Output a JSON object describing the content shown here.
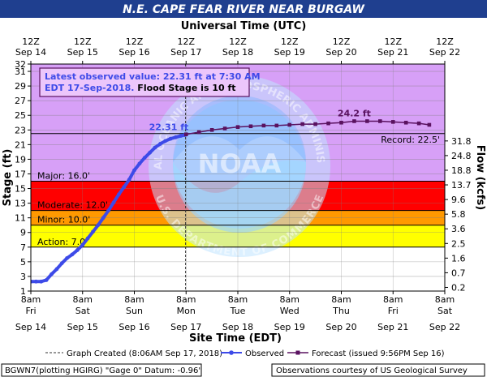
{
  "chart_data": {
    "type": "line",
    "title": "N.E. CAPE FEAR RIVER NEAR BURGAW",
    "top_axis_title": "Universal Time (UTC)",
    "top_ticks": [
      {
        "t": 0,
        "line1": "12Z",
        "line2": "Sep 14"
      },
      {
        "t": 1,
        "line1": "12Z",
        "line2": "Sep 15"
      },
      {
        "t": 2,
        "line1": "12Z",
        "line2": "Sep 16"
      },
      {
        "t": 3,
        "line1": "12Z",
        "line2": "Sep 17"
      },
      {
        "t": 4,
        "line1": "12Z",
        "line2": "Sep 18"
      },
      {
        "t": 5,
        "line1": "12Z",
        "line2": "Sep 19"
      },
      {
        "t": 6,
        "line1": "12Z",
        "line2": "Sep 20"
      },
      {
        "t": 7,
        "line1": "12Z",
        "line2": "Sep 21"
      },
      {
        "t": 8,
        "line1": "12Z",
        "line2": "Sep 22"
      }
    ],
    "bottom_axis_title": "Site Time (EDT)",
    "bottom_ticks": [
      {
        "t": 0,
        "line1": "8am",
        "line2": "Fri",
        "line3": "Sep 14"
      },
      {
        "t": 1,
        "line1": "8am",
        "line2": "Sat",
        "line3": "Sep 15"
      },
      {
        "t": 2,
        "line1": "8am",
        "line2": "Sun",
        "line3": "Sep 16"
      },
      {
        "t": 3,
        "line1": "8am",
        "line2": "Mon",
        "line3": "Sep 17"
      },
      {
        "t": 4,
        "line1": "8am",
        "line2": "Tue",
        "line3": "Sep 18"
      },
      {
        "t": 5,
        "line1": "8am",
        "line2": "Wed",
        "line3": "Sep 19"
      },
      {
        "t": 6,
        "line1": "8am",
        "line2": "Thu",
        "line3": "Sep 20"
      },
      {
        "t": 7,
        "line1": "8am",
        "line2": "Fri",
        "line3": "Sep 21"
      },
      {
        "t": 8,
        "line1": "8am",
        "line2": "Sat",
        "line3": "Sep 22"
      }
    ],
    "xlim": [
      0,
      8
    ],
    "ylabel": "Stage (ft)",
    "ylim": [
      1,
      32
    ],
    "y_ticks": [
      1,
      3,
      5,
      7,
      9,
      11,
      13,
      15,
      17,
      19,
      21,
      23,
      25,
      27,
      29,
      31,
      32
    ],
    "y2label": "Flow (kcfs)",
    "y2_ticks": [
      {
        "stage": 1.5,
        "label": "0.2"
      },
      {
        "stage": 3.5,
        "label": "0.7"
      },
      {
        "stage": 5.5,
        "label": "1.6"
      },
      {
        "stage": 7.5,
        "label": "2.5"
      },
      {
        "stage": 9.5,
        "label": "3.6"
      },
      {
        "stage": 11.5,
        "label": "5.8"
      },
      {
        "stage": 13.5,
        "label": "9.6"
      },
      {
        "stage": 15.5,
        "label": "13.7"
      },
      {
        "stage": 17.5,
        "label": "18.8"
      },
      {
        "stage": 19.5,
        "label": "24.8"
      },
      {
        "stage": 21.5,
        "label": "31.8"
      }
    ],
    "flood_categories": [
      {
        "label": "Action: 7.0'",
        "stage": 7.0,
        "color": "#ffff00"
      },
      {
        "label": "Minor: 10.0'",
        "stage": 10.0,
        "color": "#ff9900"
      },
      {
        "label": "Moderate: 12.0'",
        "stage": 12.0,
        "color": "#ff0000"
      },
      {
        "label": "Major: 16.0'",
        "stage": 16.0,
        "color": "#cc33ff"
      }
    ],
    "record": {
      "label": "Record: 22.5'",
      "stage": 22.5
    },
    "graph_created_t": 2.99,
    "info_line1": "Latest observed value: 22.31 ft at 7:30 AM",
    "info_line2a": "EDT 17-Sep-2018.",
    "info_line2b": " Flood Stage is 10 ft",
    "observed_label": "22.31 ft",
    "forecast_label": "24.2 ft",
    "series": [
      {
        "name": "Observed",
        "color": "#3d4ae8",
        "x": [
          0,
          0.1,
          0.2,
          0.3,
          0.4,
          0.5,
          0.6,
          0.7,
          0.8,
          0.9,
          1.0,
          1.1,
          1.2,
          1.3,
          1.4,
          1.5,
          1.6,
          1.7,
          1.8,
          1.9,
          2.0,
          2.1,
          2.2,
          2.3,
          2.4,
          2.5,
          2.6,
          2.7,
          2.8,
          2.9,
          2.98
        ],
        "y": [
          2.3,
          2.3,
          2.3,
          2.5,
          3.3,
          4.0,
          4.8,
          5.5,
          6.0,
          6.6,
          7.3,
          8.2,
          9.1,
          10.0,
          11.0,
          12.0,
          13.1,
          14.2,
          15.2,
          16.2,
          17.5,
          18.4,
          19.2,
          19.9,
          20.6,
          21.1,
          21.5,
          21.8,
          22.0,
          22.2,
          22.31
        ]
      },
      {
        "name": "Forecast (issued 9:56PM Sep 16)",
        "color": "#5a1260",
        "x": [
          3.0,
          3.25,
          3.5,
          3.75,
          4.0,
          4.25,
          4.5,
          4.75,
          5.0,
          5.25,
          5.5,
          5.75,
          6.0,
          6.25,
          6.5,
          6.75,
          7.0,
          7.25,
          7.5,
          7.7
        ],
        "y": [
          22.4,
          22.7,
          23.0,
          23.2,
          23.4,
          23.5,
          23.6,
          23.6,
          23.7,
          23.8,
          23.8,
          23.9,
          24.0,
          24.2,
          24.2,
          24.2,
          24.1,
          24.0,
          23.9,
          23.7
        ]
      }
    ],
    "legend": {
      "created": "Graph Created (8:06AM Sep 17, 2018)",
      "observed": "Observed",
      "forecast": "Forecast (issued 9:56PM Sep 16)"
    },
    "footer_left": "BGWN7(plotting HGIRG) \"Gage 0\" Datum: -0.96'",
    "footer_right": "Observations courtesy of US Geological Survey",
    "watermark_text_top": "NATIONAL OCEANIC AND ATMOSPHERIC ADMINISTRATION",
    "watermark_text_bottom": "U.S. DEPARTMENT OF COMMERCE",
    "watermark_center": "NOAA",
    "colors": {
      "title_bg": "#1f3f8f",
      "above_major": "#d7a0f7",
      "grid": "#808080",
      "background": "#ffffff"
    }
  }
}
